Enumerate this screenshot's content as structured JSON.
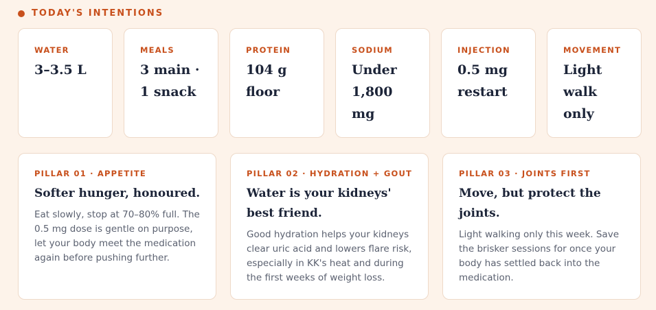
{
  "header": {
    "title": "TODAY'S INTENTIONS"
  },
  "stats": [
    {
      "label": "WATER",
      "value": "3–3.5 L"
    },
    {
      "label": "MEALS",
      "value": "3 main · 1 snack"
    },
    {
      "label": "PROTEIN",
      "value": "104 g floor"
    },
    {
      "label": "SODIUM",
      "value": "Under 1,800 mg"
    },
    {
      "label": "INJECTION",
      "value": "0.5 mg restart"
    },
    {
      "label": "MOVEMENT",
      "value": "Light walk only"
    }
  ],
  "pillars": [
    {
      "label": "PILLAR 01 · APPETITE",
      "title": "Softer hunger, honoured.",
      "body": "Eat slowly, stop at 70–80% full. The 0.5 mg dose is gentle on purpose, let your body meet the medication again before pushing further."
    },
    {
      "label": "PILLAR 02 · HYDRATION + GOUT",
      "title": "Water is your kidneys' best friend.",
      "body": "Good hydration helps your kidneys clear uric acid and lowers flare risk, especially in KK's heat and during the first weeks of weight loss."
    },
    {
      "label": "PILLAR 03 · JOINTS FIRST",
      "title": "Move, but protect the joints.",
      "body": "Light walking only this week. Save the brisker sessions for once your body has settled back into the medication."
    }
  ]
}
